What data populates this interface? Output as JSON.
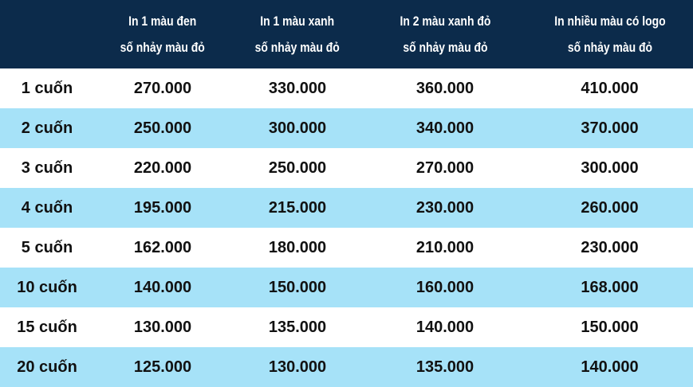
{
  "table": {
    "headers": [
      "",
      {
        "line1": "In 1 màu đen",
        "line2": "số nhảy màu đỏ"
      },
      {
        "line1": "In 1 màu xanh",
        "line2": "số nhảy màu đỏ"
      },
      {
        "line1": "In 2 màu xanh đỏ",
        "line2": "số nhảy màu đỏ"
      },
      {
        "line1": "In nhiều màu có logo",
        "line2": "số nhảy màu đỏ"
      }
    ],
    "rows": [
      {
        "qty": "1 cuốn",
        "prices": [
          "270.000",
          "330.000",
          "360.000",
          "410.000"
        ]
      },
      {
        "qty": "2 cuốn",
        "prices": [
          "250.000",
          "300.000",
          "340.000",
          "370.000"
        ]
      },
      {
        "qty": "3 cuốn",
        "prices": [
          "220.000",
          "250.000",
          "270.000",
          "300.000"
        ]
      },
      {
        "qty": "4 cuốn",
        "prices": [
          "195.000",
          "215.000",
          "230.000",
          "260.000"
        ]
      },
      {
        "qty": "5 cuốn",
        "prices": [
          "162.000",
          "180.000",
          "210.000",
          "230.000"
        ]
      },
      {
        "qty": "10 cuốn",
        "prices": [
          "140.000",
          "150.000",
          "160.000",
          "168.000"
        ]
      },
      {
        "qty": "15 cuốn",
        "prices": [
          "130.000",
          "135.000",
          "140.000",
          "150.000"
        ]
      },
      {
        "qty": "20 cuốn",
        "prices": [
          "125.000",
          "130.000",
          "135.000",
          "140.000"
        ]
      }
    ]
  },
  "colors": {
    "header_background": "#0c2b4b",
    "header_text": "#ffffff",
    "alt_row_background": "#a6e2f8",
    "plain_row_background": "#ffffff",
    "body_text": "#111111"
  }
}
